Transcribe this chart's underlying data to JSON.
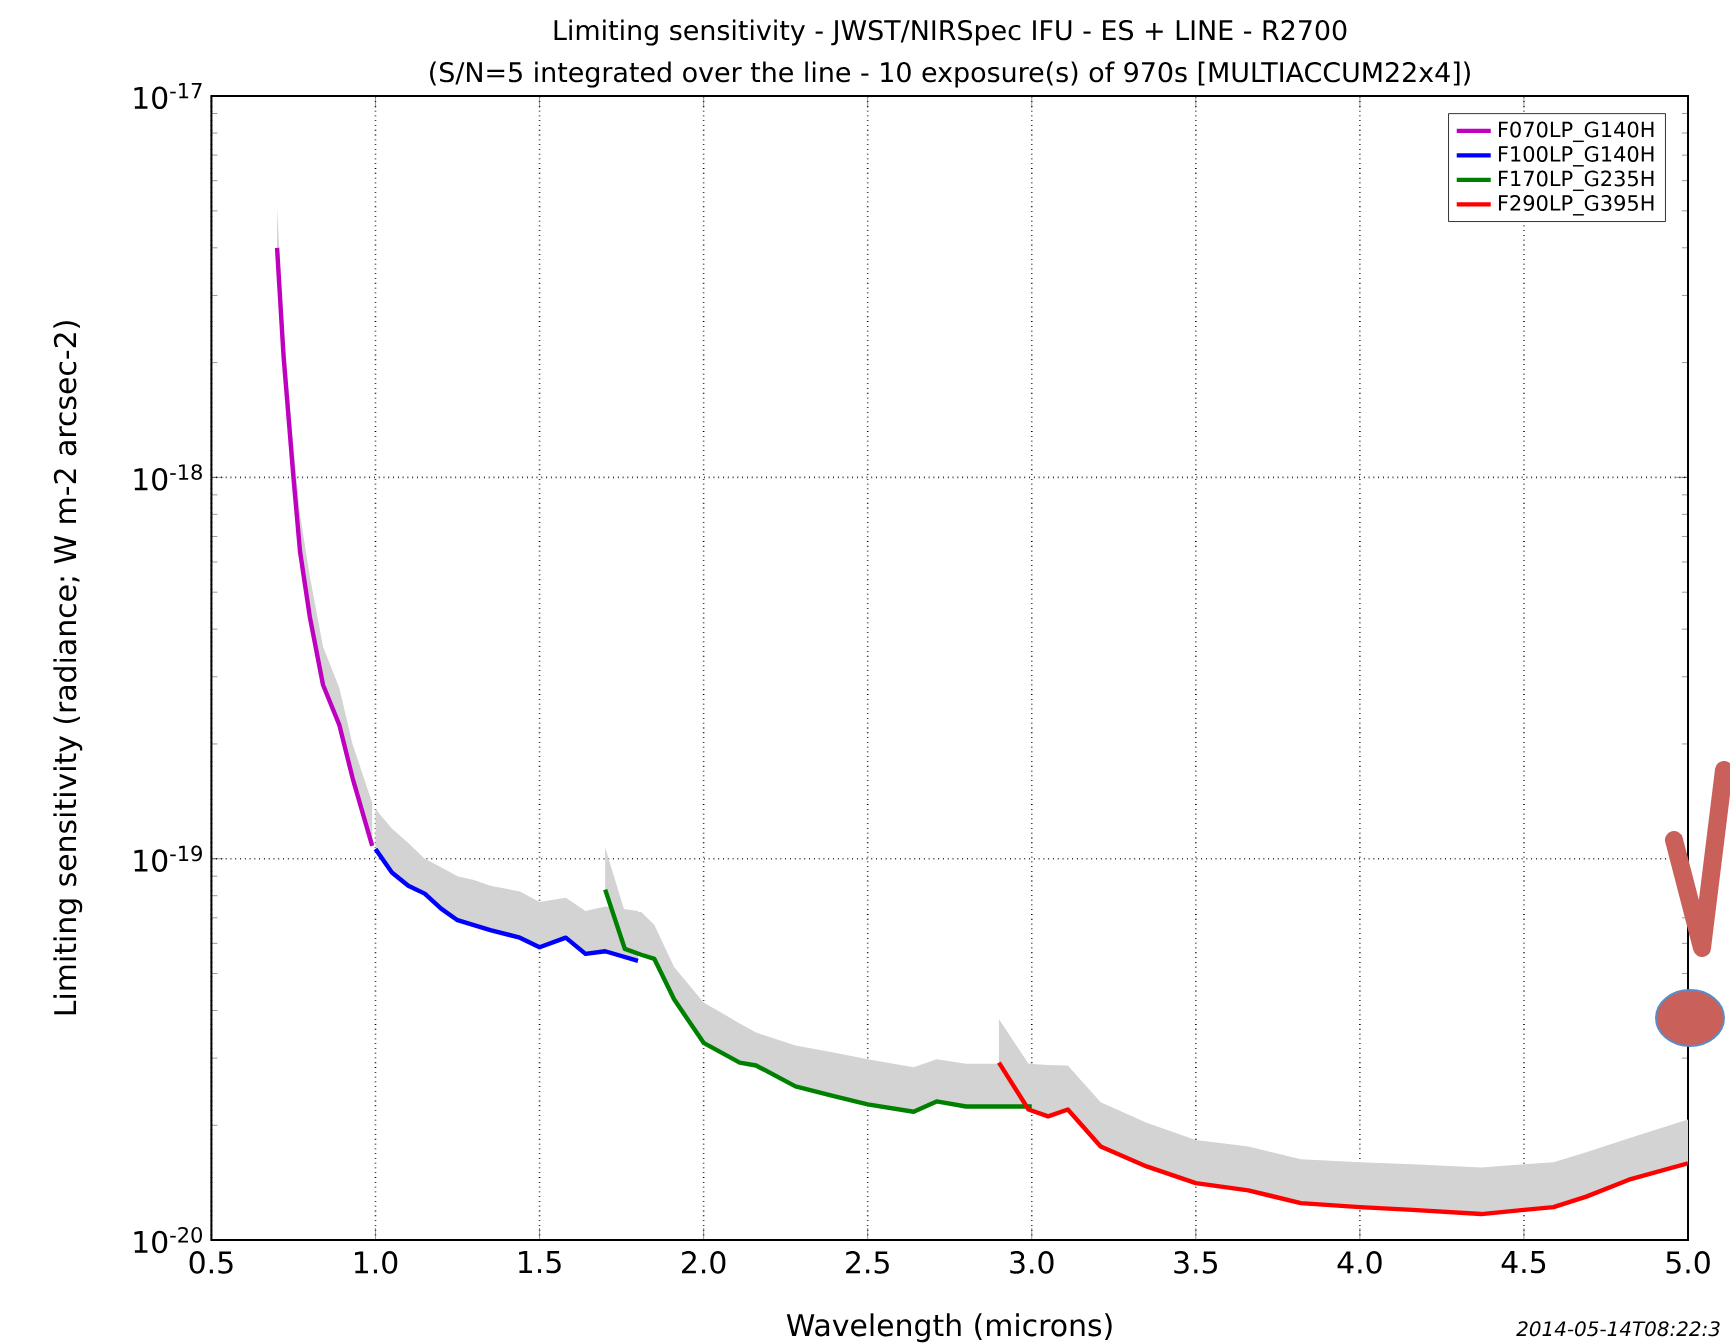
{
  "chart_data": {
    "type": "line",
    "title": "Limiting sensitivity - JWST/NIRSpec IFU - ES + LINE - R2700",
    "subtitle": "(S/N=5 integrated over the line - 10 exposure(s) of 970s [MULTIACCUM22x4])",
    "xlabel": "Wavelength (microns)",
    "ylabel": "Limiting sensitivity (radiance; W m-2 arcsec-2)",
    "annotations": [
      "2014-05-14T08:22:3"
    ],
    "xlim": [
      0.5,
      5.0
    ],
    "ylim": [
      1e-20,
      1e-17
    ],
    "xticks": [
      0.5,
      {
        "value": 1.0,
        "label": "1.0"
      },
      1.5,
      {
        "value": 2.0,
        "label": "2.0"
      },
      2.5,
      {
        "value": 3.0,
        "label": "3.0"
      },
      3.5,
      {
        "value": 4.0,
        "label": "4.0"
      },
      4.5,
      {
        "value": 5.0,
        "label": "5.0"
      }
    ],
    "yticks": [
      {
        "value": 1e-20,
        "label": "10$^{-20}$"
      },
      {
        "value": 1e-19,
        "label": "10$^{-19}$"
      },
      {
        "value": 1e-18,
        "label": "10$^{-18}$"
      },
      {
        "value": 1e-17,
        "label": "10$^{-17}$"
      }
    ],
    "log": "y",
    "grid": true,
    "legend": "top right",
    "series": [
      {
        "name": "F070LP_G140H",
        "color": "#bf00bf",
        "x": [
          0.7,
          0.72,
          0.75,
          0.77,
          0.8,
          0.84,
          0.89,
          0.93,
          0.99
        ],
        "values": [
          4e-18,
          2.07e-18,
          1e-18,
          6.4e-19,
          4.3e-19,
          2.86e-19,
          2.24e-19,
          1.63e-19,
          1.08e-19
        ],
        "lower": [
          4e-18,
          2.07e-18,
          1e-18,
          6.4e-19,
          4.3e-19,
          2.86e-19,
          2.24e-19,
          1.63e-19,
          1.08e-19
        ],
        "upper": [
          5.1e-18,
          2.4e-18,
          1.2e-18,
          8e-19,
          5.5e-19,
          3.6e-19,
          2.8e-19,
          2e-19,
          1.4e-19
        ]
      },
      {
        "name": "F100LP_G140H",
        "color": "#0000ff",
        "x": [
          1.0,
          1.05,
          1.1,
          1.15,
          1.2,
          1.25,
          1.3,
          1.35,
          1.44,
          1.5,
          1.58,
          1.64,
          1.7,
          1.8
        ],
        "values": [
          1.06e-19,
          9.2e-20,
          8.5e-20,
          8.1e-20,
          7.4e-20,
          6.9e-20,
          6.7e-20,
          6.5e-20,
          6.21e-20,
          5.86e-20,
          6.21e-20,
          5.63e-20,
          5.72e-20,
          5.4e-20
        ],
        "lower": [
          1.06e-19,
          9.2e-20,
          8.5e-20,
          8.1e-20,
          7.4e-20,
          6.9e-20,
          6.7e-20,
          6.5e-20,
          6.21e-20,
          5.86e-20,
          6.21e-20,
          5.63e-20,
          5.72e-20,
          5.4e-20
        ],
        "upper": [
          1.35e-19,
          1.2e-19,
          1.1e-19,
          1e-19,
          9.5e-20,
          9e-20,
          8.8e-20,
          8.5e-20,
          8.2e-20,
          7.7e-20,
          7.9e-20,
          7.3e-20,
          7.5e-20,
          7.3e-20
        ]
      },
      {
        "name": "F170LP_G235H",
        "color": "#008000",
        "x": [
          1.7,
          1.76,
          1.81,
          1.85,
          1.91,
          2.0,
          2.11,
          2.16,
          2.28,
          2.4,
          2.5,
          2.64,
          2.71,
          2.8,
          3.0
        ],
        "values": [
          8.3e-20,
          5.8e-20,
          5.6e-20,
          5.46e-20,
          4.28e-20,
          3.29e-20,
          2.92e-20,
          2.87e-20,
          2.53e-20,
          2.38e-20,
          2.27e-20,
          2.17e-20,
          2.31e-20,
          2.24e-20,
          2.24e-20
        ],
        "lower": [
          8.3e-20,
          5.8e-20,
          5.6e-20,
          5.46e-20,
          4.28e-20,
          3.29e-20,
          2.92e-20,
          2.87e-20,
          2.53e-20,
          2.38e-20,
          2.27e-20,
          2.17e-20,
          2.31e-20,
          2.24e-20,
          2.24e-20
        ],
        "upper": [
          1.07e-19,
          7.25e-20,
          7.25e-20,
          6.7e-20,
          5.2e-20,
          4.2e-20,
          3.7e-20,
          3.5e-20,
          3.24e-20,
          3.1e-20,
          2.98e-20,
          2.84e-20,
          2.98e-20,
          2.9e-20,
          2.9e-20
        ]
      },
      {
        "name": "F290LP_G395H",
        "color": "#ff0000",
        "x": [
          2.9,
          2.99,
          3.05,
          3.11,
          3.21,
          3.35,
          3.5,
          3.66,
          3.82,
          4.0,
          4.16,
          4.37,
          4.5,
          4.59,
          4.69,
          4.82,
          5.0
        ],
        "values": [
          2.92e-20,
          2.2e-20,
          2.11e-20,
          2.2e-20,
          1.76e-20,
          1.56e-20,
          1.41e-20,
          1.35e-20,
          1.25e-20,
          1.22e-20,
          1.2e-20,
          1.17e-20,
          1.2e-20,
          1.22e-20,
          1.3e-20,
          1.44e-20,
          1.59e-20
        ],
        "lower": [
          2.92e-20,
          2.2e-20,
          2.11e-20,
          2.2e-20,
          1.76e-20,
          1.56e-20,
          1.41e-20,
          1.35e-20,
          1.25e-20,
          1.22e-20,
          1.2e-20,
          1.17e-20,
          1.2e-20,
          1.22e-20,
          1.3e-20,
          1.44e-20,
          1.59e-20
        ],
        "upper": [
          3.8e-20,
          2.9e-20,
          2.88e-20,
          2.87e-20,
          2.3e-20,
          2.03e-20,
          1.83e-20,
          1.76e-20,
          1.63e-20,
          1.6e-20,
          1.58e-20,
          1.55e-20,
          1.58e-20,
          1.6e-20,
          1.7e-20,
          1.85e-20,
          2.07e-20
        ]
      }
    ]
  }
}
